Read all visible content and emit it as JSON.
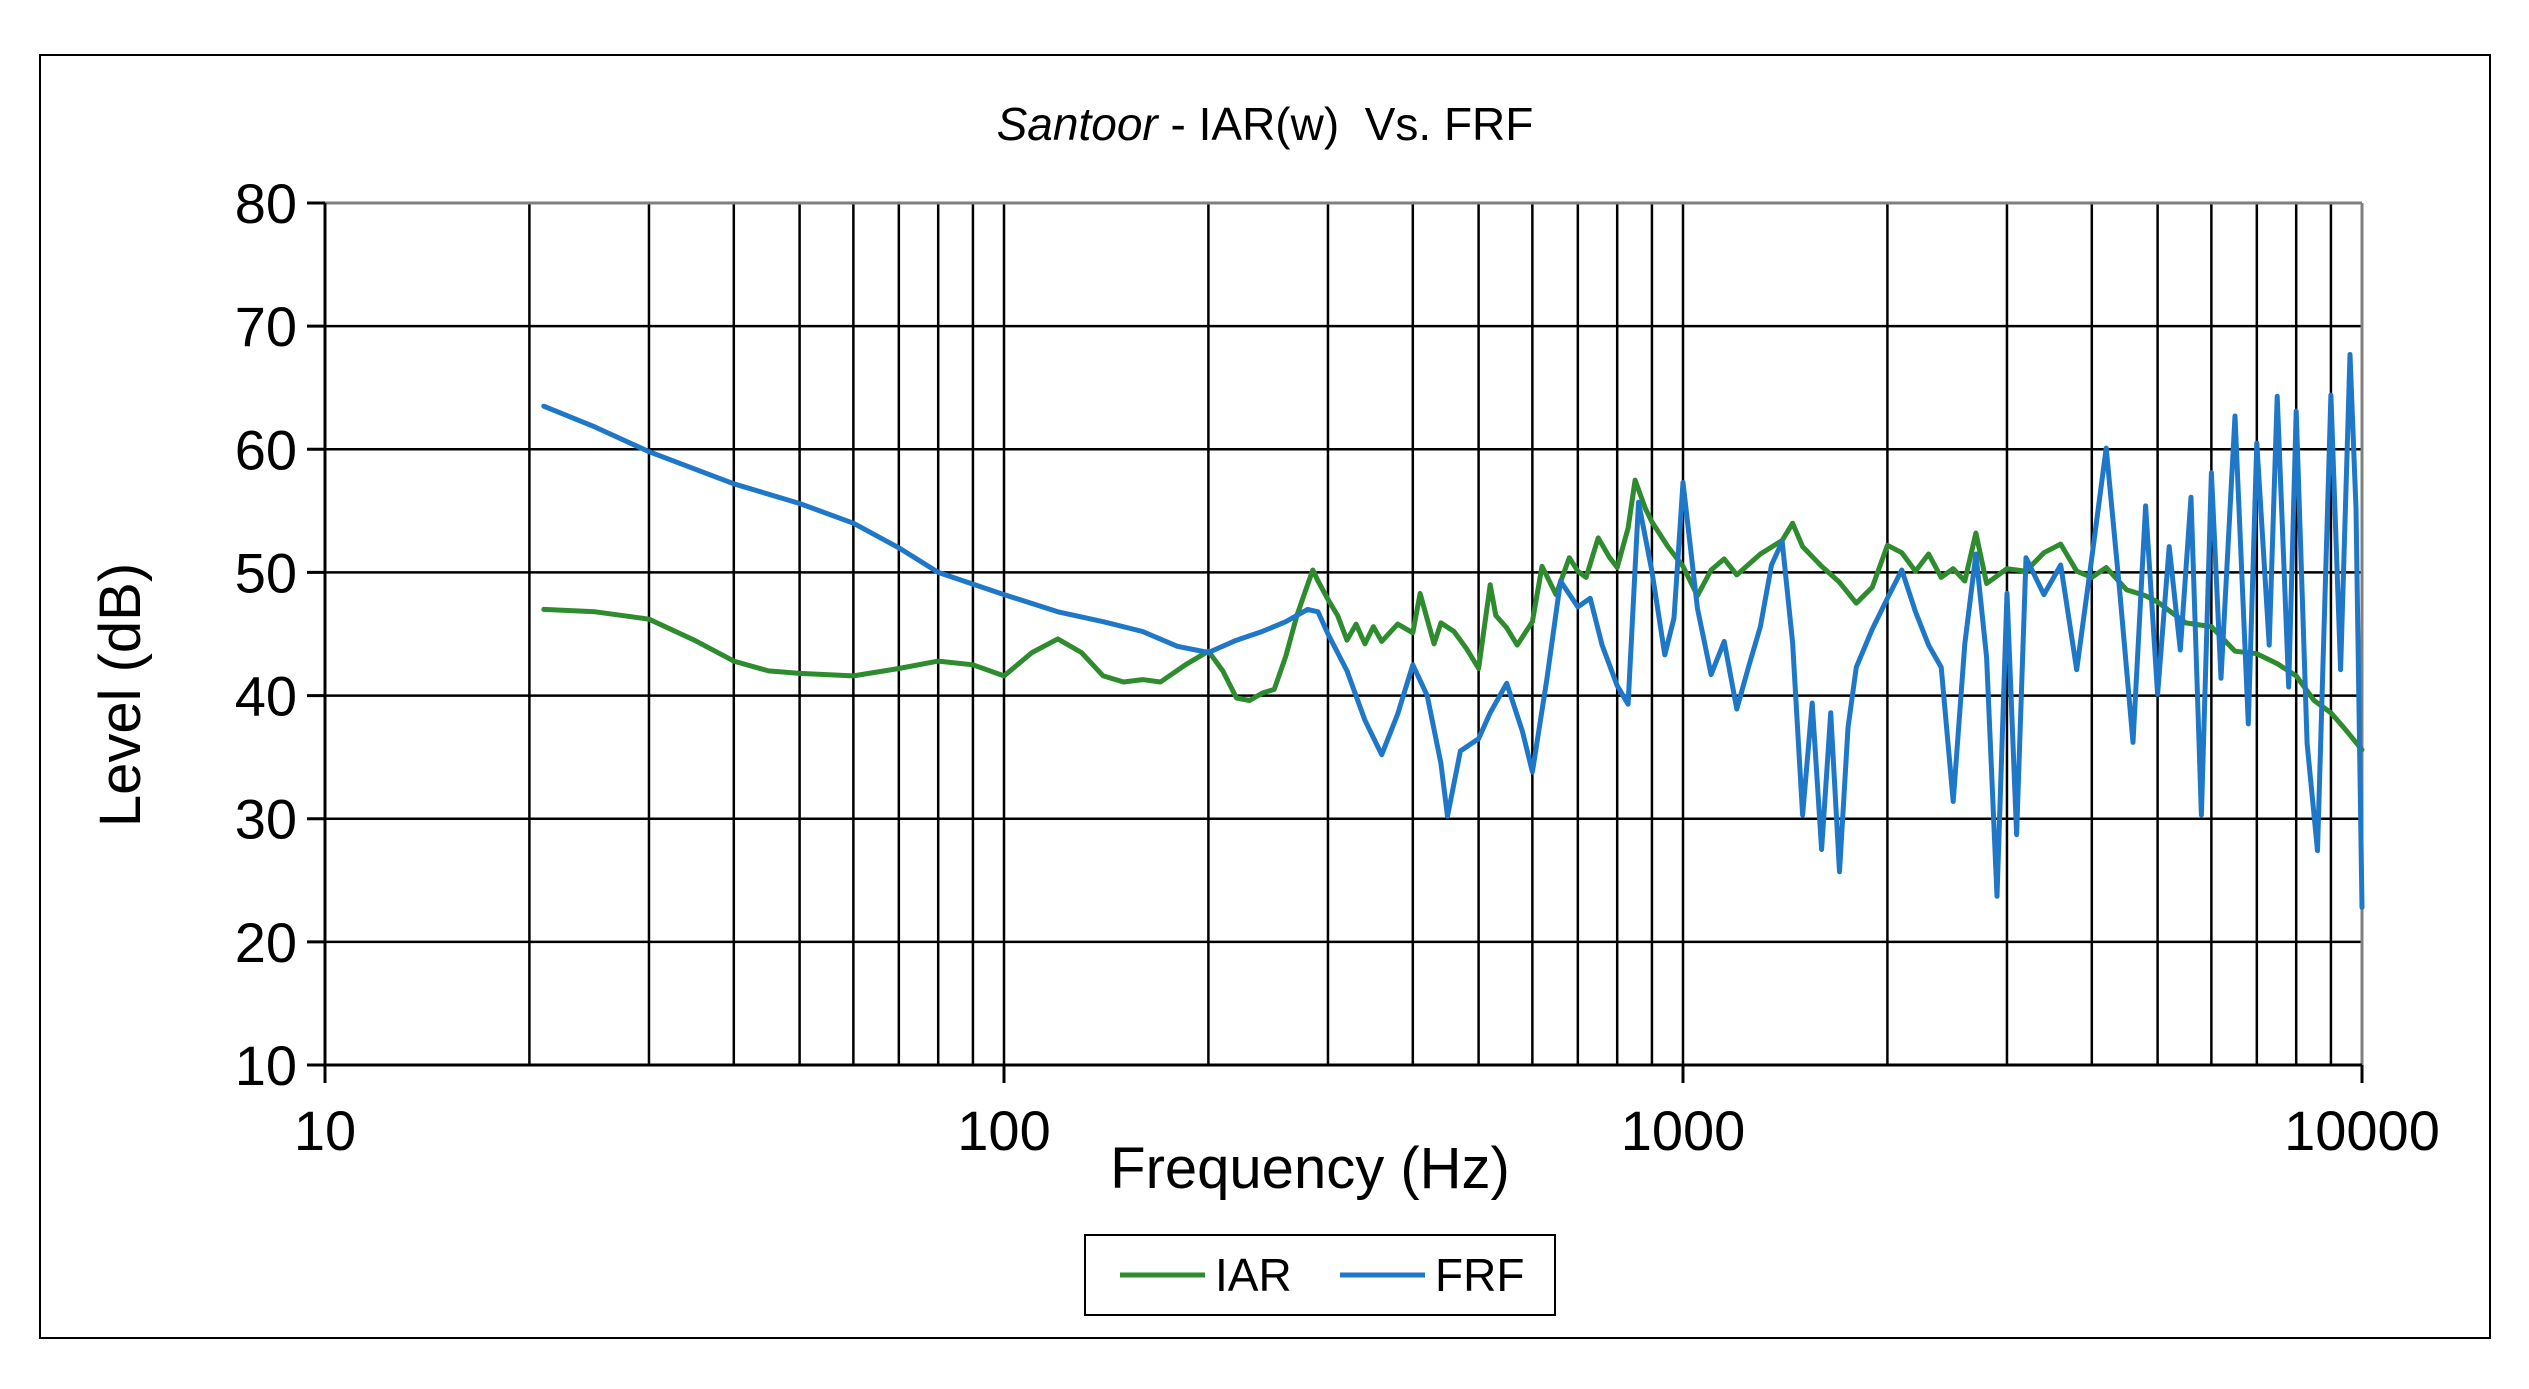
{
  "chart_data": {
    "type": "line",
    "title": {
      "italic": "Santoor",
      "rest": " - IAR(w)  Vs. FRF"
    },
    "xlabel": "Frequency (Hz)",
    "ylabel": "Level (dB)",
    "x_scale": "log",
    "xlim": [
      10,
      10000
    ],
    "ylim": [
      10,
      80
    ],
    "x_ticks": [
      10,
      100,
      1000,
      10000
    ],
    "x_tick_labels": [
      "10",
      "100",
      "1000",
      "10000"
    ],
    "y_ticks": [
      10,
      20,
      30,
      40,
      50,
      60,
      70,
      80
    ],
    "y_tick_labels": [
      "10",
      "20",
      "30",
      "40",
      "50",
      "60",
      "70",
      "80"
    ],
    "grid": true,
    "legend_position": "bottom-center",
    "series": [
      {
        "name": "IAR",
        "color": "#2e8b2e",
        "points": [
          [
            21,
            47
          ],
          [
            25,
            46.8
          ],
          [
            30,
            46.2
          ],
          [
            35,
            44.5
          ],
          [
            40,
            42.8
          ],
          [
            45,
            42
          ],
          [
            50,
            41.8
          ],
          [
            60,
            41.6
          ],
          [
            70,
            42.2
          ],
          [
            80,
            42.8
          ],
          [
            90,
            42.5
          ],
          [
            100,
            41.6
          ],
          [
            110,
            43.5
          ],
          [
            120,
            44.6
          ],
          [
            130,
            43.5
          ],
          [
            140,
            41.6
          ],
          [
            150,
            41.1
          ],
          [
            160,
            41.3
          ],
          [
            170,
            41.1
          ],
          [
            185,
            42.5
          ],
          [
            200,
            43.6
          ],
          [
            210,
            42
          ],
          [
            220,
            39.8
          ],
          [
            230,
            39.6
          ],
          [
            240,
            40.2
          ],
          [
            250,
            40.5
          ],
          [
            260,
            43.2
          ],
          [
            270,
            46.5
          ],
          [
            280,
            49
          ],
          [
            285,
            50.2
          ],
          [
            290,
            49.3
          ],
          [
            300,
            47.8
          ],
          [
            310,
            46.5
          ],
          [
            320,
            44.5
          ],
          [
            330,
            45.8
          ],
          [
            340,
            44.2
          ],
          [
            350,
            45.6
          ],
          [
            360,
            44.4
          ],
          [
            380,
            45.8
          ],
          [
            400,
            45.1
          ],
          [
            410,
            48.3
          ],
          [
            420,
            46.2
          ],
          [
            430,
            44.2
          ],
          [
            440,
            45.9
          ],
          [
            460,
            45.2
          ],
          [
            480,
            43.8
          ],
          [
            500,
            42.2
          ],
          [
            520,
            49
          ],
          [
            530,
            46.5
          ],
          [
            550,
            45.5
          ],
          [
            570,
            44.1
          ],
          [
            600,
            46
          ],
          [
            620,
            50.5
          ],
          [
            650,
            48.2
          ],
          [
            680,
            51.2
          ],
          [
            700,
            50.1
          ],
          [
            720,
            49.6
          ],
          [
            750,
            52.8
          ],
          [
            780,
            51.2
          ],
          [
            800,
            50.4
          ],
          [
            830,
            53.6
          ],
          [
            850,
            57.5
          ],
          [
            880,
            55.2
          ],
          [
            900,
            54.1
          ],
          [
            950,
            52.1
          ],
          [
            1000,
            50.5
          ],
          [
            1050,
            48.1
          ],
          [
            1100,
            50.2
          ],
          [
            1150,
            51.1
          ],
          [
            1200,
            49.8
          ],
          [
            1300,
            51.5
          ],
          [
            1400,
            52.6
          ],
          [
            1450,
            54
          ],
          [
            1500,
            52.1
          ],
          [
            1600,
            50.5
          ],
          [
            1700,
            49.2
          ],
          [
            1800,
            47.5
          ],
          [
            1900,
            48.8
          ],
          [
            2000,
            52.2
          ],
          [
            2100,
            51.6
          ],
          [
            2200,
            50.1
          ],
          [
            2300,
            51.5
          ],
          [
            2400,
            49.6
          ],
          [
            2500,
            50.3
          ],
          [
            2600,
            49.3
          ],
          [
            2700,
            53.2
          ],
          [
            2800,
            49.1
          ],
          [
            3000,
            50.3
          ],
          [
            3200,
            50.1
          ],
          [
            3400,
            51.6
          ],
          [
            3600,
            52.3
          ],
          [
            3800,
            50.1
          ],
          [
            4000,
            49.6
          ],
          [
            4200,
            50.4
          ],
          [
            4500,
            48.6
          ],
          [
            4800,
            48.1
          ],
          [
            5000,
            47.6
          ],
          [
            5500,
            45.9
          ],
          [
            6000,
            45.6
          ],
          [
            6500,
            43.6
          ],
          [
            7000,
            43.4
          ],
          [
            7500,
            42.6
          ],
          [
            8000,
            41.6
          ],
          [
            8500,
            39.6
          ],
          [
            9000,
            38.6
          ],
          [
            9500,
            37.1
          ],
          [
            10000,
            35.6
          ]
        ]
      },
      {
        "name": "FRF",
        "color": "#1f77c8",
        "points": [
          [
            21,
            63.5
          ],
          [
            25,
            61.8
          ],
          [
            30,
            59.8
          ],
          [
            40,
            57.2
          ],
          [
            50,
            55.6
          ],
          [
            60,
            54
          ],
          [
            70,
            52
          ],
          [
            80,
            50
          ],
          [
            100,
            48.2
          ],
          [
            120,
            46.8
          ],
          [
            140,
            46
          ],
          [
            160,
            45.2
          ],
          [
            180,
            44
          ],
          [
            200,
            43.5
          ],
          [
            220,
            44.5
          ],
          [
            240,
            45.2
          ],
          [
            260,
            46
          ],
          [
            280,
            47
          ],
          [
            290,
            46.8
          ],
          [
            300,
            45
          ],
          [
            320,
            42
          ],
          [
            340,
            38
          ],
          [
            360,
            35.2
          ],
          [
            380,
            38.5
          ],
          [
            400,
            42.5
          ],
          [
            420,
            40
          ],
          [
            440,
            34.5
          ],
          [
            450,
            30.2
          ],
          [
            470,
            35.5
          ],
          [
            500,
            36.5
          ],
          [
            520,
            38.6
          ],
          [
            550,
            41
          ],
          [
            580,
            37.1
          ],
          [
            600,
            33.8
          ],
          [
            630,
            41.3
          ],
          [
            660,
            49.3
          ],
          [
            700,
            47.2
          ],
          [
            730,
            47.9
          ],
          [
            760,
            44.1
          ],
          [
            800,
            40.8
          ],
          [
            830,
            39.3
          ],
          [
            860,
            55.7
          ],
          [
            900,
            50.1
          ],
          [
            940,
            43.3
          ],
          [
            970,
            46.3
          ],
          [
            1000,
            57.3
          ],
          [
            1050,
            47.1
          ],
          [
            1100,
            41.7
          ],
          [
            1150,
            44.4
          ],
          [
            1200,
            38.9
          ],
          [
            1250,
            42.4
          ],
          [
            1300,
            45.6
          ],
          [
            1350,
            50.6
          ],
          [
            1400,
            52.5
          ],
          [
            1450,
            44.3
          ],
          [
            1500,
            30.3
          ],
          [
            1550,
            39.4
          ],
          [
            1600,
            27.5
          ],
          [
            1650,
            38.6
          ],
          [
            1700,
            25.7
          ],
          [
            1750,
            37.4
          ],
          [
            1800,
            42.3
          ],
          [
            1900,
            45.4
          ],
          [
            2000,
            47.9
          ],
          [
            2100,
            50.2
          ],
          [
            2200,
            46.8
          ],
          [
            2300,
            44.1
          ],
          [
            2400,
            42.3
          ],
          [
            2500,
            31.4
          ],
          [
            2600,
            44.2
          ],
          [
            2700,
            51.5
          ],
          [
            2800,
            43.1
          ],
          [
            2900,
            23.7
          ],
          [
            3000,
            48.3
          ],
          [
            3100,
            28.7
          ],
          [
            3200,
            51.2
          ],
          [
            3400,
            48.2
          ],
          [
            3600,
            50.6
          ],
          [
            3800,
            42.1
          ],
          [
            4000,
            51.2
          ],
          [
            4200,
            60.1
          ],
          [
            4400,
            48.3
          ],
          [
            4600,
            36.2
          ],
          [
            4800,
            55.4
          ],
          [
            5000,
            40.1
          ],
          [
            5200,
            52.1
          ],
          [
            5400,
            43.7
          ],
          [
            5600,
            56.1
          ],
          [
            5800,
            30.3
          ],
          [
            6000,
            58.1
          ],
          [
            6200,
            41.4
          ],
          [
            6500,
            62.7
          ],
          [
            6800,
            37.7
          ],
          [
            7000,
            60.5
          ],
          [
            7300,
            44.1
          ],
          [
            7500,
            64.3
          ],
          [
            7800,
            40.7
          ],
          [
            8000,
            63.1
          ],
          [
            8300,
            36.1
          ],
          [
            8600,
            27.4
          ],
          [
            9000,
            64.4
          ],
          [
            9300,
            42.1
          ],
          [
            9600,
            67.7
          ],
          [
            9800,
            55.2
          ],
          [
            10000,
            22.8
          ]
        ]
      }
    ]
  }
}
